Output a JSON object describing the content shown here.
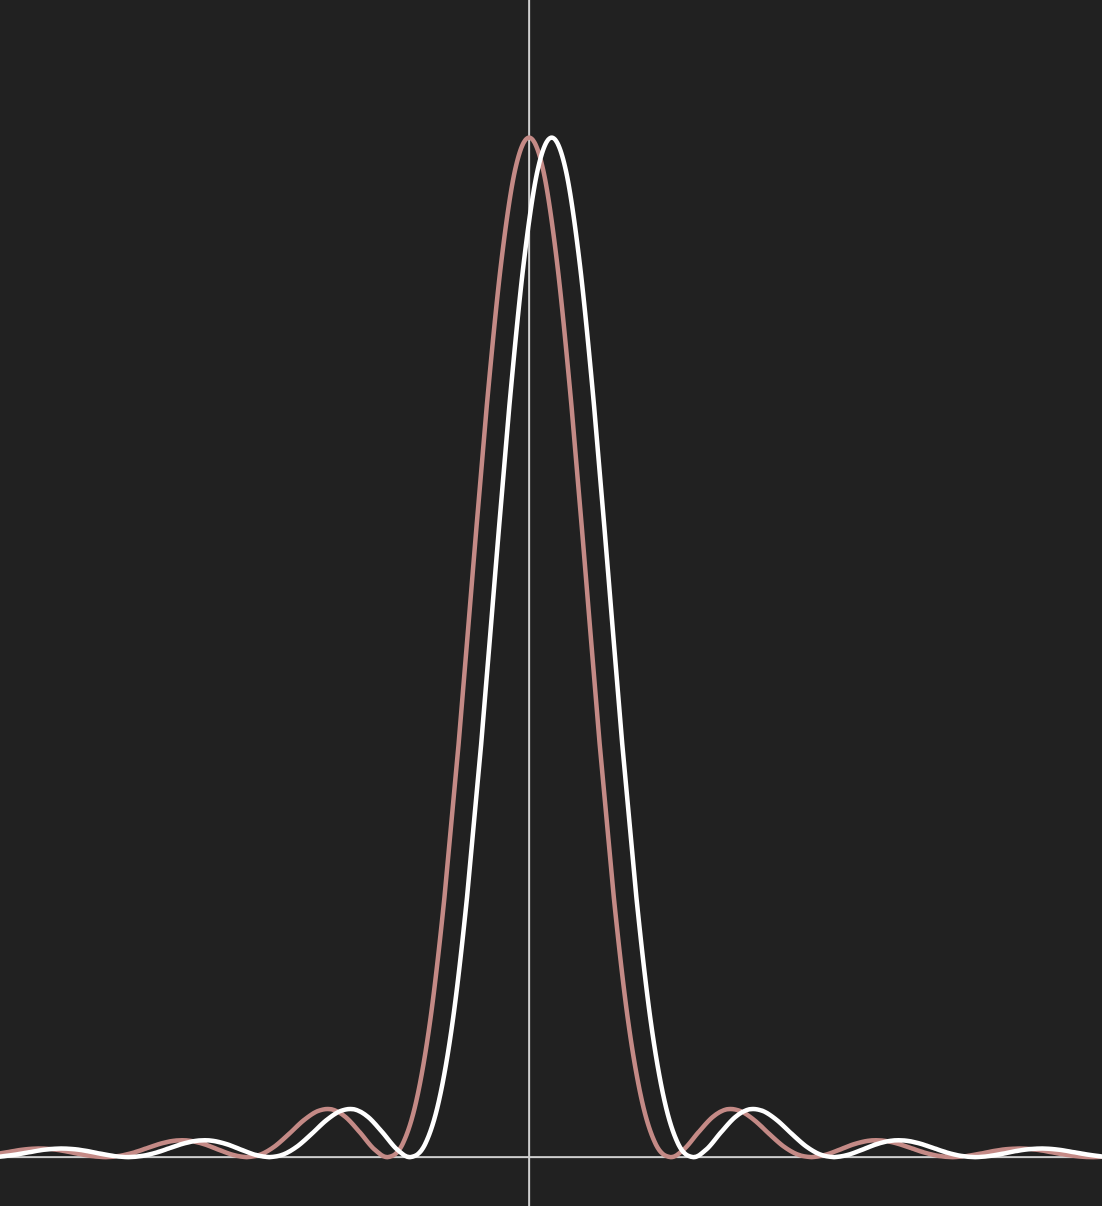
{
  "chart_data": {
    "type": "line",
    "xlim": [
      -3.75,
      4.06
    ],
    "ylim": [
      -0.048,
      1.135
    ],
    "axis_color": "#cfcfcf",
    "background": "#212121",
    "series": [
      {
        "color": "#c48a86",
        "x": [
          -3.8,
          -3.7,
          -3.6,
          -3.5,
          -3.4,
          -3.3,
          -3.2,
          -3.1,
          -3.0,
          -2.9,
          -2.8,
          -2.7,
          -2.6,
          -2.5,
          -2.4,
          -2.3,
          -2.2,
          -2.1,
          -2.0,
          -1.9,
          -1.8,
          -1.7,
          -1.6,
          -1.5,
          -1.4,
          -1.3,
          -1.2,
          -1.1,
          -1.0,
          -0.9,
          -0.8,
          -0.7,
          -0.6,
          -0.5,
          -0.4,
          -0.3,
          -0.2,
          -0.1,
          0,
          0.1,
          0.2,
          0.3,
          0.4,
          0.5,
          0.6,
          0.7,
          0.8,
          0.9,
          1.0,
          1.1,
          1.2,
          1.3,
          1.4,
          1.5,
          1.6,
          1.7,
          1.8,
          1.9,
          2.0,
          2.1,
          2.2,
          2.3,
          2.4,
          2.5,
          2.6,
          2.7,
          2.8,
          2.9,
          3.0,
          3.1,
          3.2,
          3.3,
          3.4,
          3.5,
          3.6,
          3.7,
          3.8,
          3.9,
          4.0,
          4.1
        ],
        "values": [
          0.0024,
          0.0048,
          0.0071,
          0.0083,
          0.0079,
          0.0061,
          0.0034,
          0.001,
          0,
          0.0012,
          0.0045,
          0.0091,
          0.0136,
          0.0162,
          0.0159,
          0.0125,
          0.0072,
          0.0022,
          0,
          0.0027,
          0.0108,
          0.0229,
          0.0358,
          0.045,
          0.0468,
          0.0392,
          0.0243,
          0.008,
          0,
          0.0119,
          0.0547,
          0.135,
          0.255,
          0.405,
          0.573,
          0.737,
          0.875,
          0.968,
          1,
          0.968,
          0.875,
          0.737,
          0.573,
          0.405,
          0.255,
          0.135,
          0.0547,
          0.0119,
          0,
          0.008,
          0.0243,
          0.0392,
          0.0468,
          0.045,
          0.0358,
          0.0229,
          0.0108,
          0.0027,
          0,
          0.0022,
          0.0072,
          0.0125,
          0.0159,
          0.0162,
          0.0136,
          0.0091,
          0.0045,
          0.0012,
          0,
          0.001,
          0.0034,
          0.0061,
          0.0079,
          0.0083,
          0.0071,
          0.0048,
          0.0024,
          0.0006,
          0,
          0.0006
        ]
      },
      {
        "color": "#ffffff",
        "x": [
          -3.94,
          -3.84,
          -3.74,
          -3.64,
          -3.54,
          -3.44,
          -3.34,
          -3.24,
          -3.14,
          -3.04,
          -2.94,
          -2.84,
          -2.74,
          -2.64,
          -2.54,
          -2.44,
          -2.34,
          -2.24,
          -2.14,
          -2.04,
          -1.94,
          -1.84,
          -1.74,
          -1.64,
          -1.54,
          -1.44,
          -1.34,
          -1.24,
          -1.14,
          -1.04,
          -0.94,
          -0.84,
          -0.74,
          -0.64,
          -0.54,
          -0.44,
          -0.34,
          -0.24,
          -0.14,
          -0.04,
          0.06,
          0.16,
          0.26,
          0.36,
          0.46,
          0.56,
          0.66,
          0.76,
          0.86,
          0.96,
          1.06,
          1.16,
          1.26,
          1.36,
          1.46,
          1.56,
          1.66,
          1.76,
          1.86,
          1.96,
          2.06,
          2.16,
          2.26,
          2.36,
          2.46,
          2.56,
          2.66,
          2.76,
          2.86,
          2.96,
          3.06,
          3.16,
          3.26,
          3.36,
          3.46,
          3.56,
          3.66,
          3.76,
          3.86,
          3.96,
          4.06,
          4.16
        ],
        "values": [
          0.0006,
          0,
          0.0006,
          0.0024,
          0.0048,
          0.0071,
          0.0083,
          0.0079,
          0.0061,
          0.0034,
          0.001,
          0,
          0.0012,
          0.0045,
          0.0091,
          0.0136,
          0.0162,
          0.0159,
          0.0125,
          0.0072,
          0.0022,
          0,
          0.0027,
          0.0108,
          0.0229,
          0.0358,
          0.045,
          0.0468,
          0.0392,
          0.0243,
          0.008,
          0,
          0.0119,
          0.0547,
          0.135,
          0.255,
          0.405,
          0.573,
          0.737,
          0.875,
          0.968,
          1,
          0.968,
          0.875,
          0.737,
          0.573,
          0.405,
          0.255,
          0.135,
          0.0547,
          0.0119,
          0,
          0.008,
          0.0243,
          0.0392,
          0.0468,
          0.045,
          0.0358,
          0.0229,
          0.0108,
          0.0027,
          0,
          0.0022,
          0.0072,
          0.0125,
          0.0159,
          0.0162,
          0.0136,
          0.0091,
          0.0045,
          0.0012,
          0,
          0.001,
          0.0034,
          0.0061,
          0.0079,
          0.0083,
          0.0071,
          0.0048,
          0.0024,
          0.0006,
          0
        ]
      }
    ]
  }
}
